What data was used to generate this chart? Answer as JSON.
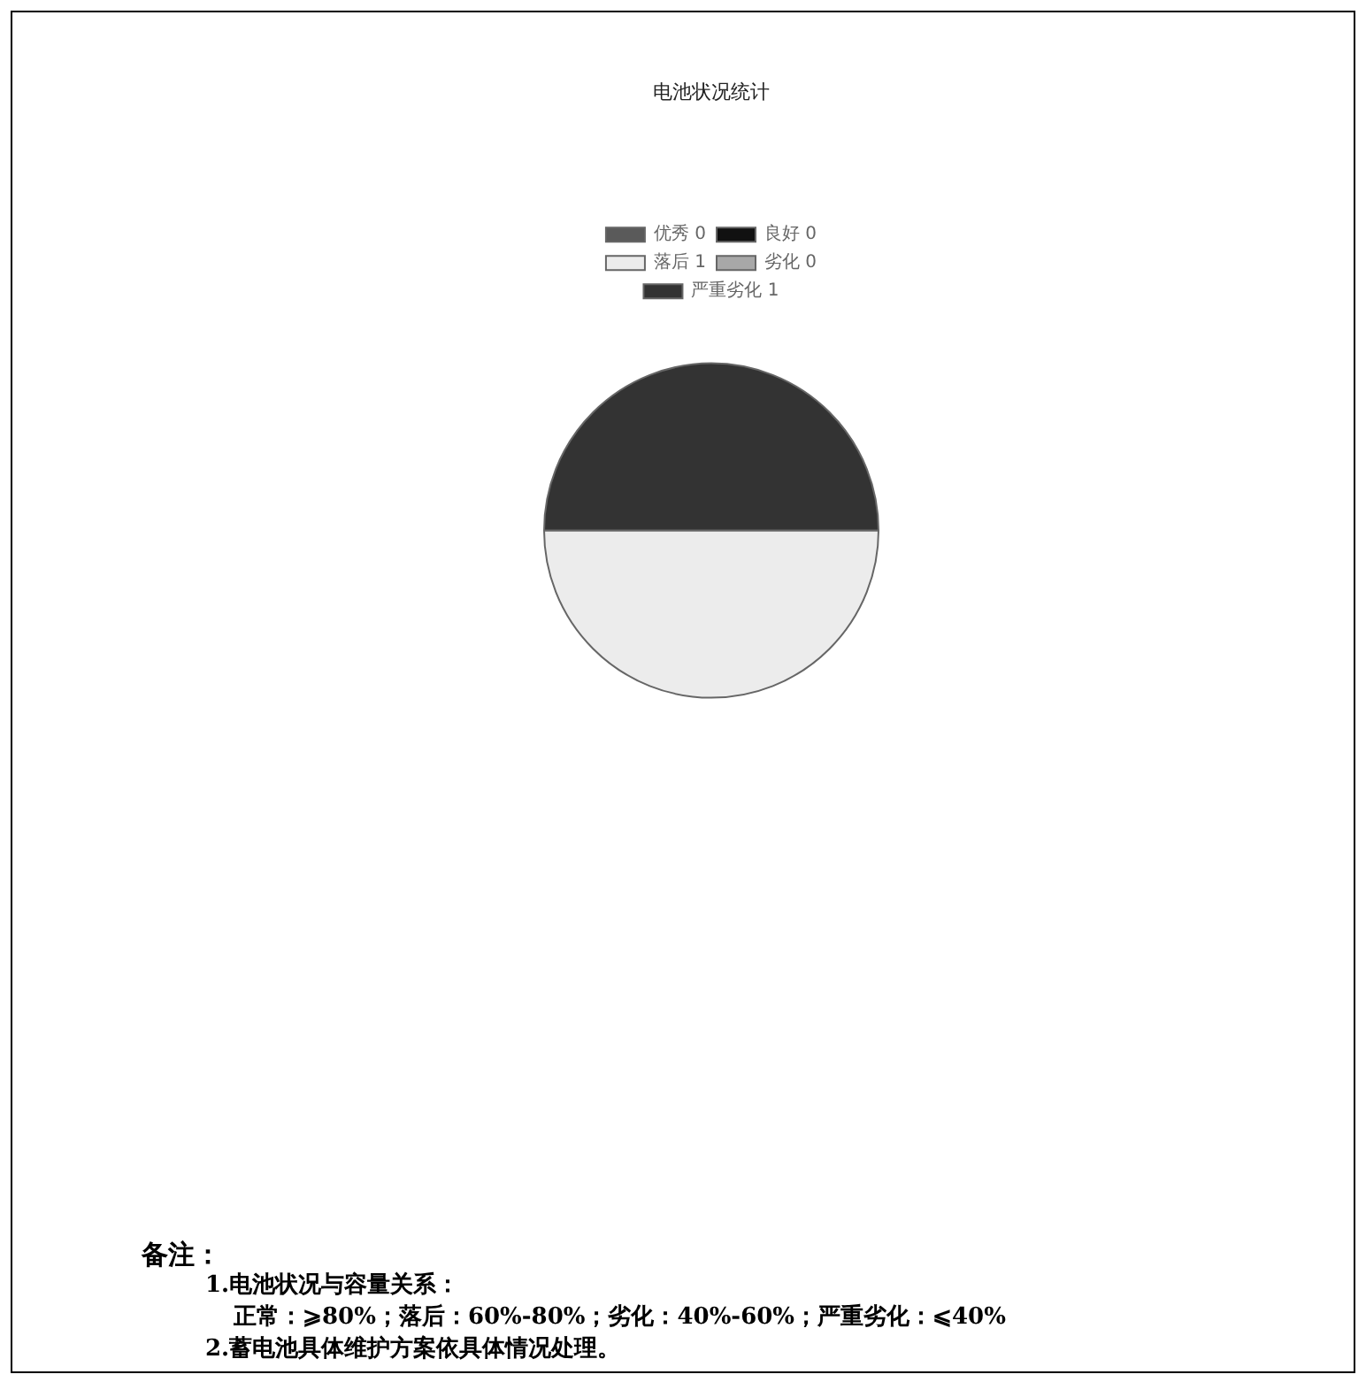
{
  "chart_data": {
    "type": "pie",
    "title": "电池状况统计",
    "categories": [
      "优秀 0",
      "良好 0",
      "落后 1",
      "劣化 0",
      "严重劣化 1"
    ],
    "values": [
      0,
      0,
      50,
      0,
      50
    ],
    "colors": [
      "#5a5a5a",
      "#111111",
      "#ececec",
      "#a8a8a8",
      "#333333"
    ],
    "legend": "top",
    "annotations": [
      "备注：",
      "1.电池状况与容量关系：",
      "正常：⩾80%；落后：60%-80%；劣化：40%-60%；严重劣化：⩽40%",
      "2.蓄电池具体维护方案依具体情况处理。"
    ]
  }
}
